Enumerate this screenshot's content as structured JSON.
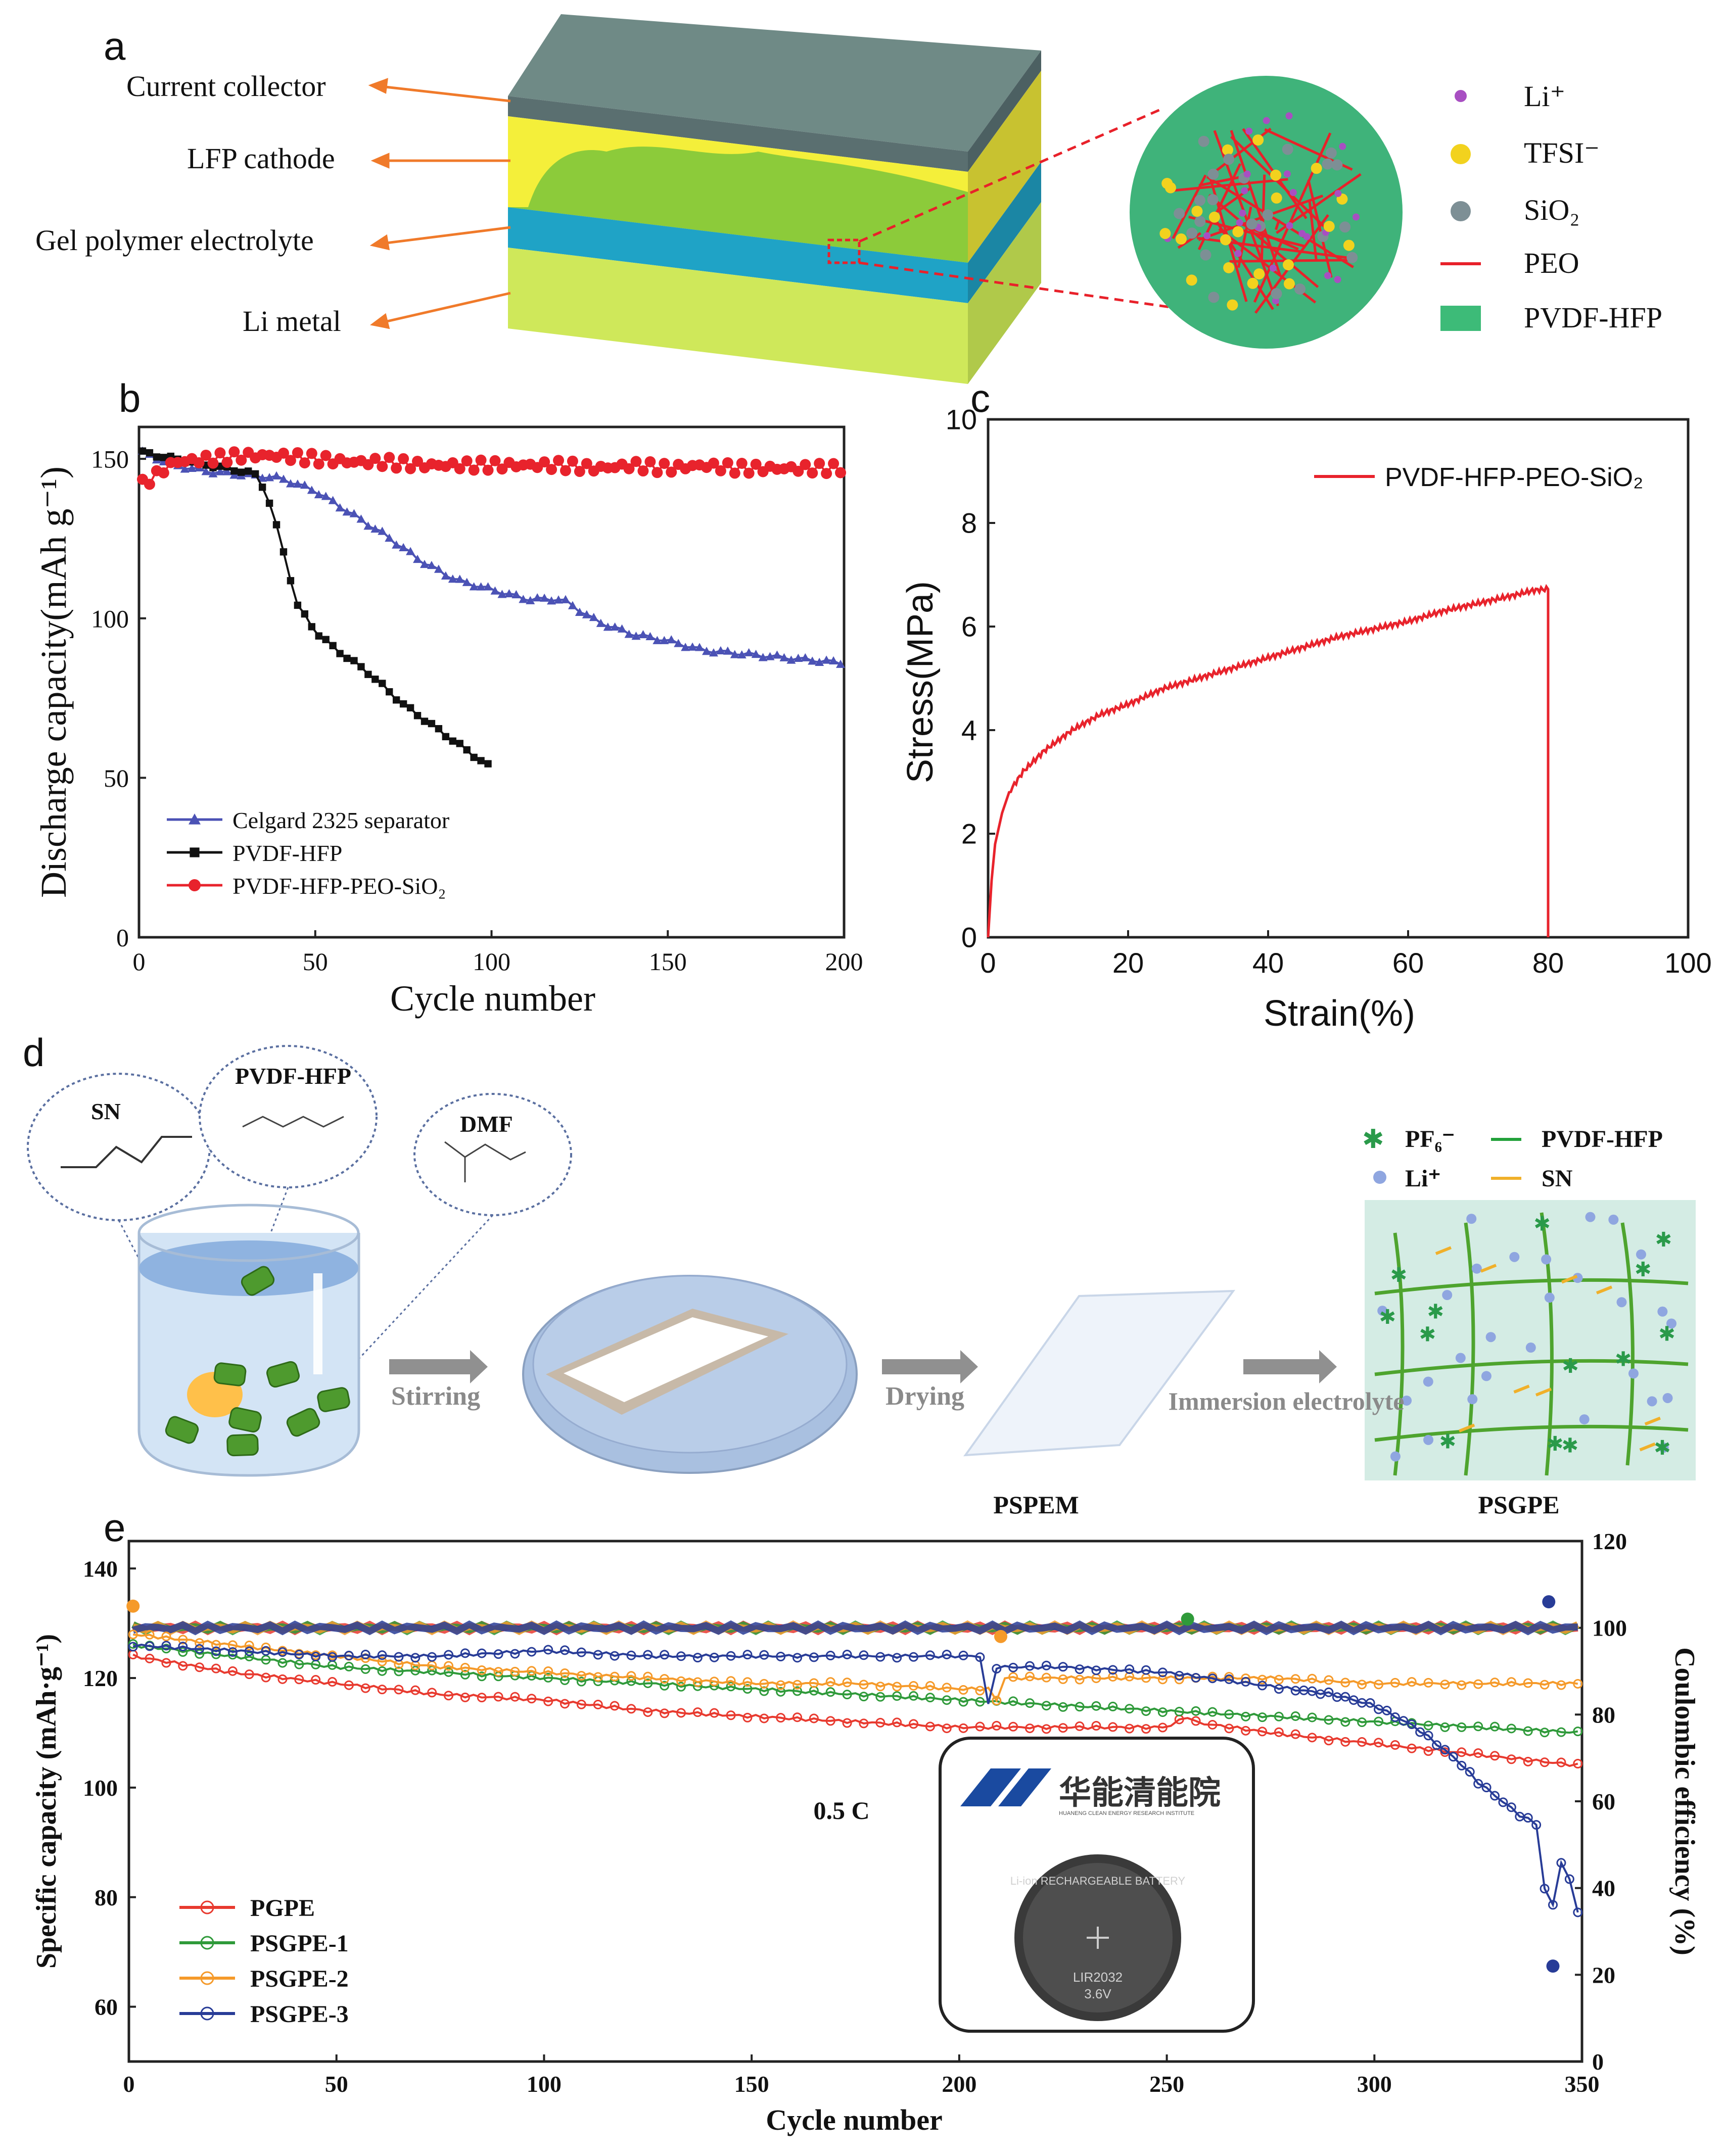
{
  "panel_a": {
    "label": "a",
    "layers": [
      "Current collector",
      "LFP cathode",
      "Gel polymer electrolyte",
      "Li metal"
    ],
    "legend": [
      {
        "text": "Li⁺",
        "color": "#a84fc2"
      },
      {
        "text": "TFSI⁻",
        "color": "#f2d21e"
      },
      {
        "text": "SiO₂",
        "color": "#7d8f95"
      },
      {
        "text": "PEO",
        "color": "#e8212a"
      },
      {
        "text": "PVDF-HFP",
        "color": "#3dbb78"
      }
    ]
  },
  "panel_d": {
    "label": "d",
    "molecules": [
      "SN",
      "PVDF-HFP",
      "DMF"
    ],
    "steps": [
      "Stirring",
      "Drying",
      "Immersion electrolyte"
    ],
    "products": [
      "PSPEM",
      "PSGPE"
    ],
    "legend": [
      {
        "text": "PF₆⁻",
        "color": "#2a9a4a"
      },
      {
        "text": "PVDF-HFP",
        "color": "#22a13a"
      },
      {
        "text": "Li⁺",
        "color": "#8fa6e0"
      },
      {
        "text": "SN",
        "color": "#f0b02a"
      }
    ]
  },
  "inset": {
    "logo_text": "华能清能院",
    "logo_subtitle": "HUANENG CLEAN ENERGY RESEARCH INSTITUTE",
    "battery_text": [
      "Li-ion RECHARGEABLE BATTERY",
      "LIR2032",
      "3.6V"
    ]
  },
  "chart_data": [
    {
      "id": "b",
      "label": "b",
      "type": "scatter",
      "xlabel": "Cycle number",
      "ylabel": "Discharge capacity(mAh g⁻¹)",
      "xlim": [
        0,
        200
      ],
      "ylim": [
        0,
        160
      ],
      "xticks": [
        0,
        50,
        100,
        150,
        200
      ],
      "yticks": [
        0,
        50,
        100,
        150
      ],
      "legend_position": "bottom-left",
      "series": [
        {
          "name": "Celgard 2325 separator",
          "color": "#4b52b5",
          "marker": "triangle",
          "x": [
            1,
            10,
            20,
            30,
            40,
            50,
            60,
            70,
            80,
            90,
            100,
            110,
            120,
            130,
            140,
            150,
            160,
            170,
            180,
            190,
            200
          ],
          "y": [
            152,
            148,
            146,
            145,
            144,
            140,
            133,
            126,
            118,
            112,
            109,
            106,
            106,
            99,
            95,
            93,
            90,
            89,
            88,
            87,
            86
          ]
        },
        {
          "name": "PVDF-HFP",
          "color": "#111111",
          "marker": "square",
          "x": [
            1,
            10,
            20,
            30,
            33,
            36,
            40,
            45,
            50,
            55,
            60,
            65,
            70,
            75,
            80,
            85,
            90,
            95,
            100
          ],
          "y": [
            152,
            150,
            148,
            146,
            145,
            140,
            125,
            104,
            96,
            91,
            87,
            83,
            78,
            73,
            69,
            65,
            61,
            57,
            53
          ]
        },
        {
          "name": "PVDF-HFP-PEO-SiO₂",
          "color": "#e8232c",
          "marker": "circle",
          "x": [
            1,
            5,
            10,
            20,
            30,
            40,
            50,
            60,
            70,
            80,
            90,
            100,
            110,
            120,
            130,
            140,
            150,
            160,
            170,
            180,
            190,
            200
          ],
          "y": [
            142,
            145,
            149,
            150,
            151,
            151,
            150,
            149,
            149,
            148,
            148,
            148,
            148,
            148,
            147,
            148,
            147,
            148,
            147,
            147,
            147,
            147
          ]
        }
      ]
    },
    {
      "id": "c",
      "label": "c",
      "type": "line",
      "xlabel": "Strain(%)",
      "ylabel": "Stress(MPa)",
      "xlim": [
        0,
        100
      ],
      "ylim": [
        0,
        10
      ],
      "xticks": [
        0,
        20,
        40,
        60,
        80,
        100
      ],
      "yticks": [
        0,
        2,
        4,
        6,
        8,
        10
      ],
      "legend_position": "top-right",
      "series": [
        {
          "name": "PVDF-HFP-PEO-SiO₂",
          "color": "#e8232c",
          "x": [
            0,
            0.5,
            1,
            2,
            3,
            5,
            8,
            12,
            16,
            20,
            25,
            30,
            35,
            40,
            45,
            50,
            55,
            60,
            65,
            70,
            75,
            78,
            79.5,
            80,
            80
          ],
          "y": [
            0,
            1.1,
            1.8,
            2.4,
            2.8,
            3.2,
            3.6,
            4.0,
            4.3,
            4.5,
            4.8,
            5.0,
            5.2,
            5.4,
            5.6,
            5.8,
            5.95,
            6.1,
            6.3,
            6.45,
            6.6,
            6.7,
            6.72,
            6.72,
            0
          ]
        }
      ]
    },
    {
      "id": "e",
      "label": "e",
      "type": "scatter",
      "xlabel": "Cycle number",
      "ylabel": "Specific capacity (mAh·g⁻¹)",
      "y2label": "Coulombic efficiency (%)",
      "xlim": [
        0,
        350
      ],
      "ylim": [
        50,
        145
      ],
      "y2lim": [
        0,
        120
      ],
      "xticks": [
        0,
        50,
        100,
        150,
        200,
        250,
        300,
        350
      ],
      "yticks": [
        60,
        80,
        100,
        120,
        140
      ],
      "y2ticks": [
        0,
        20,
        40,
        60,
        80,
        100,
        120
      ],
      "annotation": "0.5 C",
      "legend_position": "bottom-left",
      "series": [
        {
          "name": "PGPE",
          "color": "#e83a2f",
          "x": [
            1,
            25,
            50,
            75,
            100,
            125,
            150,
            175,
            200,
            225,
            250,
            255,
            256,
            275,
            300,
            325,
            350
          ],
          "y": [
            124,
            121,
            119,
            117,
            116,
            114,
            113,
            112,
            111,
            111,
            111,
            113,
            112,
            110,
            108,
            106,
            104
          ]
        },
        {
          "name": "PSGPE-1",
          "color": "#2f9a3a",
          "x": [
            1,
            25,
            50,
            75,
            100,
            125,
            150,
            175,
            200,
            225,
            250,
            275,
            300,
            325,
            350
          ],
          "y": [
            126,
            124,
            122,
            121,
            120,
            119,
            118,
            117,
            116,
            115,
            114,
            113,
            112,
            111,
            110
          ]
        },
        {
          "name": "PSGPE-2",
          "color": "#f59a2a",
          "x": [
            1,
            25,
            50,
            75,
            100,
            125,
            150,
            175,
            200,
            207,
            210,
            211,
            225,
            250,
            275,
            300,
            325,
            350
          ],
          "y": [
            128,
            126,
            124,
            122,
            121,
            120,
            119,
            119,
            118,
            118,
            115,
            120,
            120,
            120,
            120,
            119,
            119,
            119
          ]
        },
        {
          "name": "PSGPE-3",
          "color": "#283c97",
          "x": [
            1,
            25,
            50,
            75,
            100,
            125,
            150,
            175,
            200,
            206,
            207,
            208,
            225,
            250,
            260,
            270,
            280,
            290,
            300,
            305,
            310,
            315,
            320,
            325,
            330,
            335,
            340,
            342,
            344,
            346,
            348,
            350
          ],
          "y": [
            126,
            125,
            124,
            124,
            125,
            124,
            124,
            124,
            124,
            124,
            115,
            122,
            122,
            121,
            120,
            119,
            118,
            117,
            115,
            113,
            111,
            108,
            105,
            101,
            98,
            95,
            93,
            70,
            87,
            86,
            80,
            75
          ]
        }
      ],
      "coulombic_efficiency": {
        "PGPE": 100,
        "PSGPE-1": 100,
        "PSGPE-2": 100,
        "PSGPE-3": 100
      }
    }
  ]
}
